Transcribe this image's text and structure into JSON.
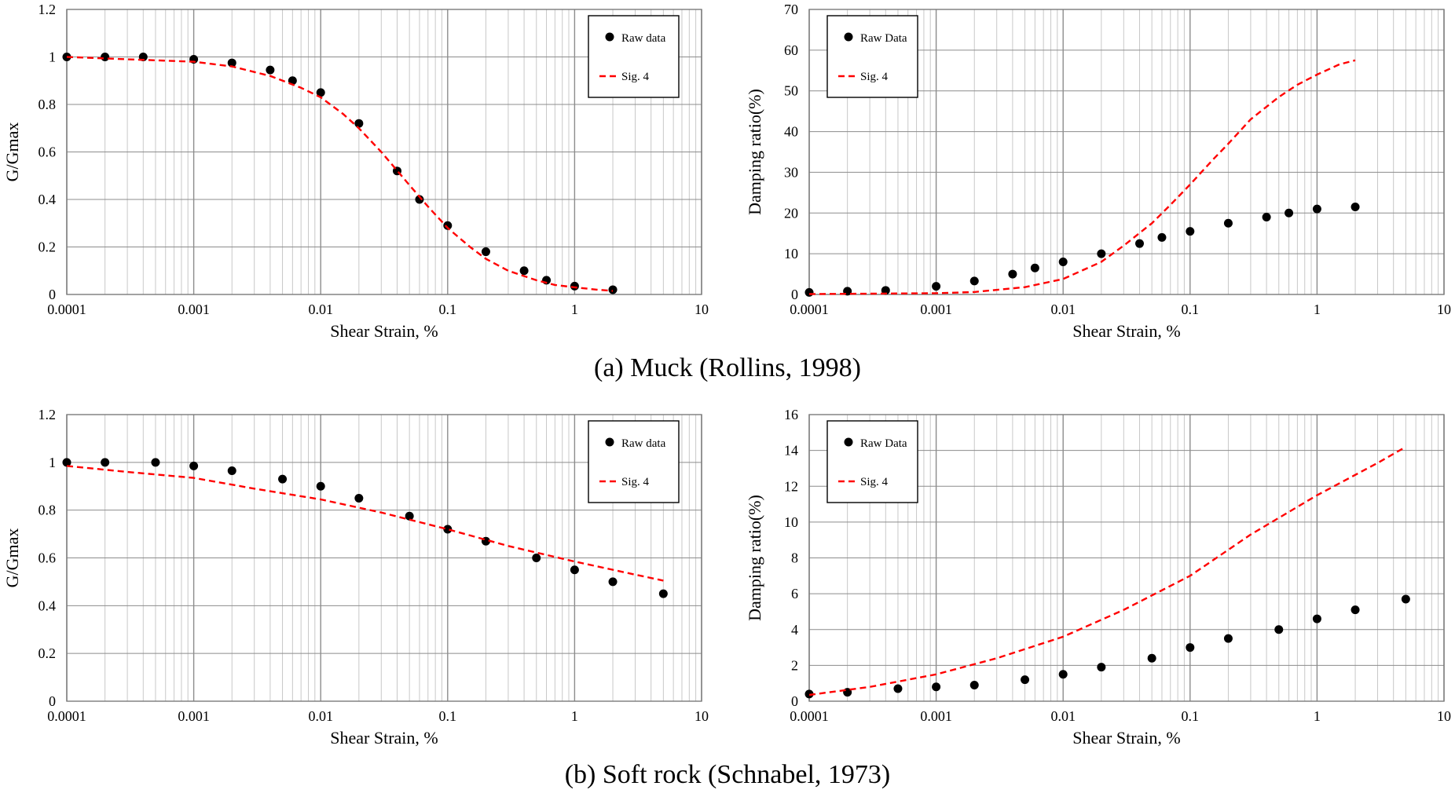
{
  "captions": {
    "a": "(a) Muck (Rollins, 1998)",
    "b": "(b) Soft rock (Schnabel, 1973)"
  },
  "colors": {
    "raw": "#000000",
    "fit": "#ff0000",
    "grid_major": "#8c8c8c",
    "grid_minor": "#c8c8c8"
  },
  "chart_data": [
    {
      "id": "a-modulus",
      "type": "scatter",
      "x_scale": "log",
      "xlim": [
        0.0001,
        10
      ],
      "ylim": [
        0,
        1.2
      ],
      "xlabel": "Shear Strain, %",
      "ylabel": "G/Gmax",
      "x_ticks": [
        "0.0001",
        "0.001",
        "0.01",
        "0.1",
        "1",
        "10"
      ],
      "y_ticks": [
        "0",
        "0.2",
        "0.4",
        "0.6",
        "0.8",
        "1",
        "1.2"
      ],
      "legend": {
        "placement": "top-right",
        "entries": [
          "Raw data",
          "Sig. 4"
        ]
      },
      "series": [
        {
          "name": "Raw data",
          "kind": "points",
          "x": [
            0.0001,
            0.0002,
            0.0004,
            0.001,
            0.002,
            0.004,
            0.006,
            0.01,
            0.02,
            0.04,
            0.06,
            0.1,
            0.2,
            0.4,
            0.6,
            1,
            2
          ],
          "y": [
            1.0,
            1.0,
            1.0,
            0.99,
            0.975,
            0.945,
            0.9,
            0.85,
            0.72,
            0.52,
            0.4,
            0.29,
            0.18,
            0.1,
            0.06,
            0.035,
            0.02
          ]
        },
        {
          "name": "Sig. 4",
          "kind": "dashed-line",
          "x": [
            0.0001,
            0.0003,
            0.001,
            0.002,
            0.004,
            0.007,
            0.01,
            0.015,
            0.02,
            0.03,
            0.05,
            0.07,
            0.1,
            0.15,
            0.2,
            0.3,
            0.5,
            0.7,
            1,
            1.5,
            2
          ],
          "y": [
            1.0,
            0.99,
            0.98,
            0.96,
            0.92,
            0.87,
            0.83,
            0.76,
            0.7,
            0.6,
            0.46,
            0.37,
            0.28,
            0.2,
            0.15,
            0.1,
            0.06,
            0.04,
            0.03,
            0.02,
            0.015
          ]
        }
      ]
    },
    {
      "id": "a-damping",
      "type": "scatter",
      "x_scale": "log",
      "xlim": [
        0.0001,
        10
      ],
      "ylim": [
        0,
        70
      ],
      "xlabel": "Shear Strain, %",
      "ylabel": "Damping ratio(%)",
      "x_ticks": [
        "0.0001",
        "0.001",
        "0.01",
        "0.1",
        "1",
        "10"
      ],
      "y_ticks": [
        "0",
        "10",
        "20",
        "30",
        "40",
        "50",
        "60",
        "70"
      ],
      "legend": {
        "placement": "top-left",
        "entries": [
          "Raw Data",
          "Sig. 4"
        ]
      },
      "series": [
        {
          "name": "Raw Data",
          "kind": "points",
          "x": [
            0.0001,
            0.0002,
            0.0004,
            0.001,
            0.002,
            0.004,
            0.006,
            0.01,
            0.02,
            0.04,
            0.06,
            0.1,
            0.2,
            0.4,
            0.6,
            1,
            2
          ],
          "y": [
            0.5,
            0.8,
            1.0,
            2.0,
            3.3,
            5.0,
            6.5,
            8.0,
            10.0,
            12.5,
            14.0,
            15.5,
            17.5,
            19.0,
            20.0,
            21.0,
            21.5
          ]
        },
        {
          "name": "Sig. 4",
          "kind": "dashed-line",
          "x": [
            0.0001,
            0.0003,
            0.001,
            0.002,
            0.005,
            0.01,
            0.02,
            0.03,
            0.05,
            0.07,
            0.1,
            0.15,
            0.2,
            0.3,
            0.5,
            0.7,
            1,
            1.5,
            2
          ],
          "y": [
            0.1,
            0.2,
            0.3,
            0.6,
            1.8,
            3.8,
            8.0,
            12.0,
            17.5,
            22.0,
            27.0,
            33.0,
            37.0,
            43.0,
            48.5,
            51.5,
            54.0,
            56.5,
            57.5
          ]
        }
      ]
    },
    {
      "id": "b-modulus",
      "type": "scatter",
      "x_scale": "log",
      "xlim": [
        0.0001,
        10
      ],
      "ylim": [
        0,
        1.2
      ],
      "xlabel": "Shear Strain, %",
      "ylabel": "G/Gmax",
      "x_ticks": [
        "0.0001",
        "0.001",
        "0.01",
        "0.1",
        "1",
        "10"
      ],
      "y_ticks": [
        "0",
        "0.2",
        "0.4",
        "0.6",
        "0.8",
        "1",
        "1.2"
      ],
      "legend": {
        "placement": "top-right",
        "entries": [
          "Raw data",
          "Sig. 4"
        ]
      },
      "series": [
        {
          "name": "Raw data",
          "kind": "points",
          "x": [
            0.0001,
            0.0002,
            0.0005,
            0.001,
            0.002,
            0.005,
            0.01,
            0.02,
            0.05,
            0.1,
            0.2,
            0.5,
            1,
            2,
            5
          ],
          "y": [
            1.0,
            1.0,
            1.0,
            0.985,
            0.965,
            0.93,
            0.9,
            0.85,
            0.775,
            0.72,
            0.67,
            0.6,
            0.55,
            0.5,
            0.45
          ]
        },
        {
          "name": "Sig. 4",
          "kind": "dashed-line",
          "x": [
            0.0001,
            0.0003,
            0.001,
            0.003,
            0.01,
            0.03,
            0.1,
            0.3,
            1,
            3,
            5
          ],
          "y": [
            0.985,
            0.96,
            0.935,
            0.89,
            0.845,
            0.79,
            0.72,
            0.65,
            0.585,
            0.53,
            0.505
          ]
        }
      ]
    },
    {
      "id": "b-damping",
      "type": "scatter",
      "x_scale": "log",
      "xlim": [
        0.0001,
        10
      ],
      "ylim": [
        0,
        16
      ],
      "xlabel": "Shear Strain, %",
      "ylabel": "Damping ratio(%)",
      "x_ticks": [
        "0.0001",
        "0.001",
        "0.01",
        "0.1",
        "1",
        "10"
      ],
      "y_ticks": [
        "0",
        "2",
        "4",
        "6",
        "8",
        "10",
        "12",
        "14",
        "16"
      ],
      "legend": {
        "placement": "top-left",
        "entries": [
          "Raw Data",
          "Sig. 4"
        ]
      },
      "series": [
        {
          "name": "Raw Data",
          "kind": "points",
          "x": [
            0.0001,
            0.0002,
            0.0005,
            0.001,
            0.002,
            0.005,
            0.01,
            0.02,
            0.05,
            0.1,
            0.2,
            0.5,
            1,
            2,
            5
          ],
          "y": [
            0.4,
            0.5,
            0.7,
            0.8,
            0.9,
            1.2,
            1.5,
            1.9,
            2.4,
            3.0,
            3.5,
            4.0,
            4.6,
            5.1,
            5.7
          ]
        },
        {
          "name": "Sig. 4",
          "kind": "dashed-line",
          "x": [
            0.0001,
            0.0003,
            0.001,
            0.003,
            0.01,
            0.03,
            0.1,
            0.3,
            1,
            3,
            5
          ],
          "y": [
            0.35,
            0.8,
            1.5,
            2.4,
            3.6,
            5.1,
            7.0,
            9.3,
            11.5,
            13.3,
            14.2
          ]
        }
      ]
    }
  ]
}
